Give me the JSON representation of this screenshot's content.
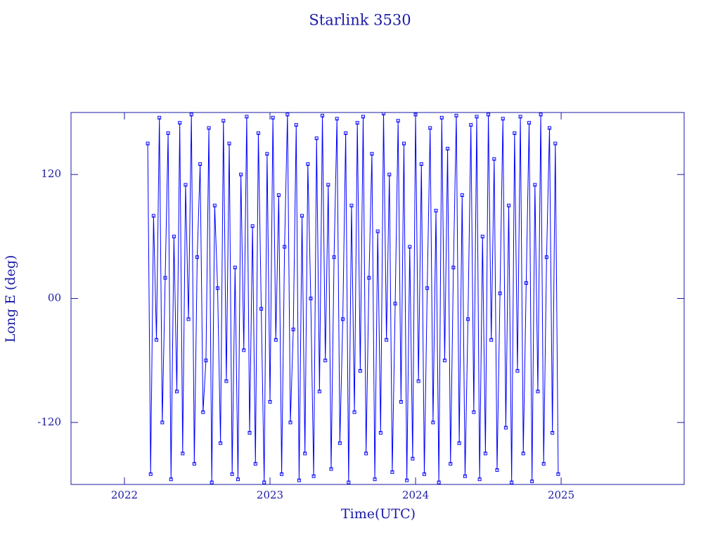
{
  "chart_data": {
    "type": "line",
    "title": "Starlink 3530",
    "x_label": "Time(UTC)",
    "y_label": "Long E (deg)",
    "color": "#0000ff",
    "axis_color": "#1a1aa6",
    "markers": true,
    "xlim": [
      2021.633,
      2025.845
    ],
    "ylim": [
      -180,
      180
    ],
    "xticks": [
      2022,
      2023,
      2024,
      2025
    ],
    "yticks": [
      120,
      {
        "value": 0,
        "label": "00"
      },
      -120
    ],
    "x": [
      2022.16,
      2022.18,
      2022.2,
      2022.22,
      2022.24,
      2022.26,
      2022.28,
      2022.3,
      2022.32,
      2022.34,
      2022.36,
      2022.38,
      2022.4,
      2022.42,
      2022.44,
      2022.46,
      2022.48,
      2022.5,
      2022.52,
      2022.54,
      2022.56,
      2022.58,
      2022.6,
      2022.62,
      2022.64,
      2022.66,
      2022.68,
      2022.7,
      2022.72,
      2022.74,
      2022.76,
      2022.78,
      2022.8,
      2022.82,
      2022.84,
      2022.86,
      2022.88,
      2022.9,
      2022.92,
      2022.94,
      2022.96,
      2022.98,
      2023.0,
      2023.02,
      2023.04,
      2023.06,
      2023.08,
      2023.1,
      2023.12,
      2023.14,
      2023.16,
      2023.18,
      2023.2,
      2023.22,
      2023.24,
      2023.26,
      2023.28,
      2023.3,
      2023.32,
      2023.34,
      2023.36,
      2023.38,
      2023.4,
      2023.42,
      2023.44,
      2023.46,
      2023.48,
      2023.5,
      2023.52,
      2023.54,
      2023.56,
      2023.58,
      2023.6,
      2023.62,
      2023.64,
      2023.66,
      2023.68,
      2023.7,
      2023.72,
      2023.74,
      2023.76,
      2023.78,
      2023.8,
      2023.82,
      2023.84,
      2023.86,
      2023.88,
      2023.9,
      2023.92,
      2023.94,
      2023.96,
      2023.98,
      2024.0,
      2024.02,
      2024.04,
      2024.06,
      2024.08,
      2024.1,
      2024.12,
      2024.14,
      2024.16,
      2024.18,
      2024.2,
      2024.22,
      2024.24,
      2024.26,
      2024.28,
      2024.3,
      2024.32,
      2024.34,
      2024.36,
      2024.38,
      2024.4,
      2024.42,
      2024.44,
      2024.46,
      2024.48,
      2024.5,
      2024.52,
      2024.54,
      2024.56,
      2024.58,
      2024.6,
      2024.62,
      2024.64,
      2024.66,
      2024.68,
      2024.7,
      2024.72,
      2024.74,
      2024.76,
      2024.78,
      2024.8,
      2024.82,
      2024.84,
      2024.86,
      2024.88,
      2024.9,
      2024.92,
      2024.94,
      2024.96,
      2024.98
    ],
    "values": [
      150,
      -170,
      80,
      -40,
      175,
      -120,
      20,
      160,
      -175,
      60,
      -90,
      170,
      -150,
      110,
      -20,
      178,
      -160,
      40,
      130,
      -110,
      -60,
      165,
      -178,
      90,
      10,
      -140,
      172,
      -80,
      150,
      -170,
      30,
      -175,
      120,
      -50,
      176,
      -130,
      70,
      -160,
      160,
      -10,
      -178,
      140,
      -100,
      175,
      -40,
      100,
      -170,
      50,
      178,
      -120,
      -30,
      168,
      -176,
      80,
      -150,
      130,
      0,
      -172,
      155,
      -90,
      177,
      -60,
      110,
      -165,
      40,
      174,
      -140,
      -20,
      160,
      -178,
      90,
      -110,
      170,
      -70,
      176,
      -150,
      20,
      140,
      -175,
      65,
      -130,
      179,
      -40,
      120,
      -168,
      -5,
      172,
      -100,
      150,
      -176,
      50,
      -155,
      178,
      -80,
      130,
      -170,
      10,
      165,
      -120,
      85,
      -178,
      175,
      -60,
      145,
      -160,
      30,
      177,
      -140,
      100,
      -172,
      -20,
      168,
      -110,
      176,
      -175,
      60,
      -150,
      178,
      -40,
      135,
      -166,
      5,
      174,
      -125,
      90,
      -178,
      160,
      -70,
      176,
      -150,
      15,
      170,
      -177,
      110,
      -90,
      178,
      -160,
      40,
      165,
      -130,
      150,
      -170
    ]
  }
}
